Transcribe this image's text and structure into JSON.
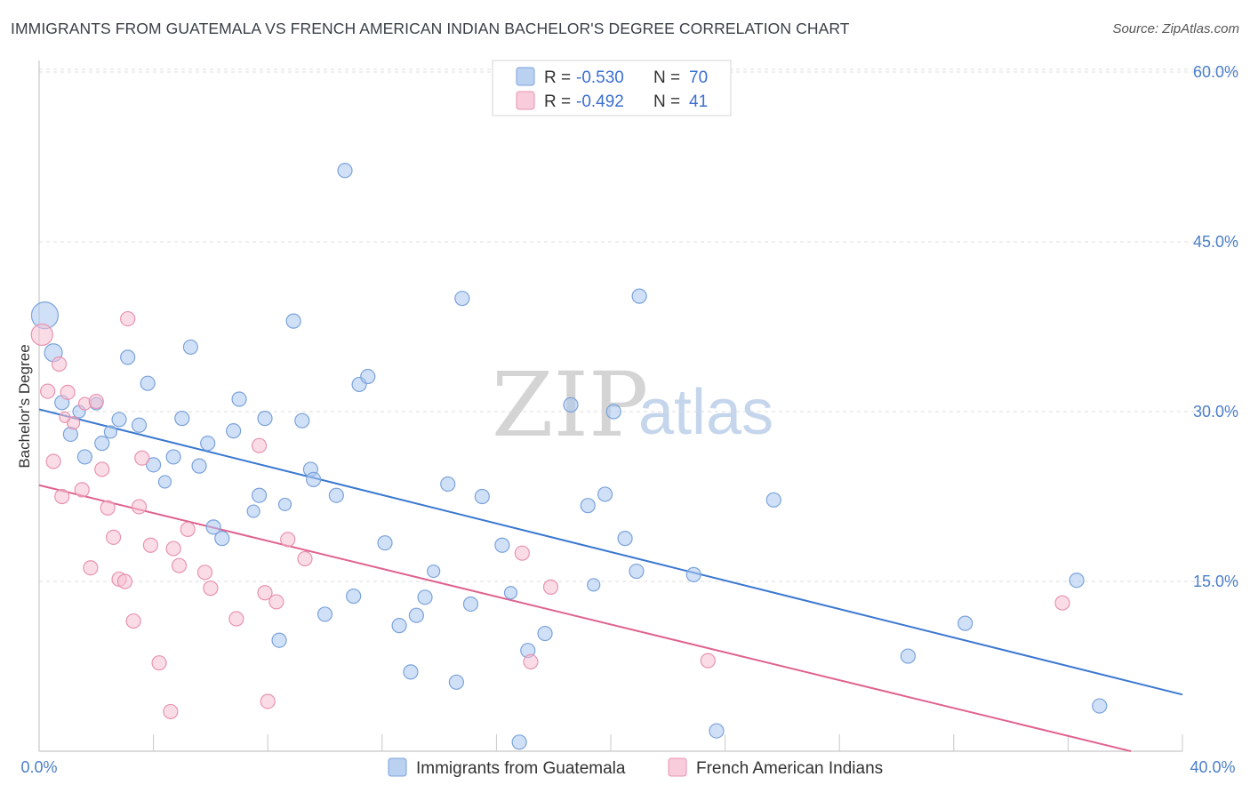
{
  "header": {
    "title": "IMMIGRANTS FROM GUATEMALA VS FRENCH AMERICAN INDIAN BACHELOR'S DEGREE CORRELATION CHART",
    "source": "Source: ZipAtlas.com"
  },
  "watermark": {
    "zip": "ZIP",
    "atlas": "atlas"
  },
  "chart_data": {
    "type": "scatter",
    "title": "IMMIGRANTS FROM GUATEMALA VS FRENCH AMERICAN INDIAN BACHELOR'S DEGREE CORRELATION CHART",
    "xlabel": "",
    "ylabel": "Bachelor's Degree",
    "xlim": [
      0,
      40
    ],
    "ylim": [
      0,
      63
    ],
    "x_tick_labels": [
      "0.0%",
      "40.0%"
    ],
    "y_ticks": [
      15,
      30,
      45,
      60
    ],
    "y_tick_labels": [
      "15.0%",
      "30.0%",
      "45.0%",
      "60.0%"
    ],
    "grid": true,
    "legend": {
      "position": "top-center",
      "rows": [
        {
          "r_label": "R =",
          "r_value": "-0.530",
          "n_label": "N =",
          "n_value": "70"
        },
        {
          "r_label": "R =",
          "r_value": "-0.492",
          "n_label": "N =",
          "n_value": "41"
        }
      ]
    },
    "series": [
      {
        "name": "Immigrants from Guatemala",
        "color": "#a9c6ee",
        "stroke": "#7ba3dc",
        "trend_color": "#3a78d0",
        "trend": {
          "x": [
            0,
            40
          ],
          "y": [
            30.2,
            5.0
          ]
        },
        "points": [
          [
            0.2,
            38.5,
            30
          ],
          [
            0.5,
            35.2,
            20
          ],
          [
            0.8,
            30.8,
            16
          ],
          [
            1.1,
            28.0,
            16
          ],
          [
            1.4,
            30.0,
            14
          ],
          [
            1.6,
            26.0,
            16
          ],
          [
            2.0,
            30.7,
            14
          ],
          [
            2.2,
            27.2,
            16
          ],
          [
            2.5,
            28.2,
            14
          ],
          [
            2.8,
            29.3,
            16
          ],
          [
            3.1,
            34.8,
            16
          ],
          [
            3.5,
            28.8,
            16
          ],
          [
            3.8,
            32.5,
            16
          ],
          [
            4.0,
            25.3,
            16
          ],
          [
            4.4,
            23.8,
            14
          ],
          [
            4.7,
            26.0,
            16
          ],
          [
            5.0,
            29.4,
            16
          ],
          [
            5.3,
            35.7,
            16
          ],
          [
            5.6,
            25.2,
            16
          ],
          [
            5.9,
            27.2,
            16
          ],
          [
            6.1,
            19.8,
            16
          ],
          [
            6.4,
            18.8,
            16
          ],
          [
            6.8,
            28.3,
            16
          ],
          [
            7.0,
            31.1,
            16
          ],
          [
            7.5,
            21.2,
            14
          ],
          [
            7.7,
            22.6,
            16
          ],
          [
            7.9,
            29.4,
            16
          ],
          [
            8.4,
            9.8,
            16
          ],
          [
            8.6,
            21.8,
            14
          ],
          [
            8.9,
            38.0,
            16
          ],
          [
            9.2,
            29.2,
            16
          ],
          [
            9.5,
            24.9,
            16
          ],
          [
            9.6,
            24.0,
            16
          ],
          [
            10.0,
            12.1,
            16
          ],
          [
            10.4,
            22.6,
            16
          ],
          [
            10.7,
            51.3,
            16
          ],
          [
            11.0,
            13.7,
            16
          ],
          [
            11.2,
            32.4,
            16
          ],
          [
            11.5,
            33.1,
            16
          ],
          [
            12.1,
            18.4,
            16
          ],
          [
            12.6,
            11.1,
            16
          ],
          [
            13.0,
            7.0,
            16
          ],
          [
            13.2,
            12.0,
            16
          ],
          [
            13.5,
            13.6,
            16
          ],
          [
            13.8,
            15.9,
            14
          ],
          [
            14.3,
            23.6,
            16
          ],
          [
            14.6,
            6.1,
            16
          ],
          [
            14.8,
            40.0,
            16
          ],
          [
            15.1,
            13.0,
            16
          ],
          [
            15.5,
            22.5,
            16
          ],
          [
            16.2,
            18.2,
            16
          ],
          [
            16.5,
            14.0,
            14
          ],
          [
            16.8,
            0.8,
            16
          ],
          [
            17.1,
            8.9,
            16
          ],
          [
            17.7,
            10.4,
            16
          ],
          [
            18.6,
            30.6,
            16
          ],
          [
            19.2,
            21.7,
            16
          ],
          [
            19.4,
            14.7,
            14
          ],
          [
            19.8,
            22.7,
            16
          ],
          [
            20.1,
            30.0,
            16
          ],
          [
            20.5,
            18.8,
            16
          ],
          [
            20.9,
            15.9,
            16
          ],
          [
            21.0,
            40.2,
            16
          ],
          [
            22.9,
            15.6,
            16
          ],
          [
            23.7,
            1.8,
            16
          ],
          [
            25.7,
            22.2,
            16
          ],
          [
            30.4,
            8.4,
            16
          ],
          [
            32.4,
            11.3,
            16
          ],
          [
            36.3,
            15.1,
            16
          ],
          [
            37.1,
            4.0,
            16
          ]
        ]
      },
      {
        "name": "French American Indians",
        "color": "#f6bfd1",
        "stroke": "#e893b0",
        "trend_color": "#e0628f",
        "trend": {
          "x": [
            0,
            38.2
          ],
          "y": [
            23.5,
            0.0
          ]
        },
        "points": [
          [
            0.1,
            36.8,
            24
          ],
          [
            0.3,
            31.8,
            16
          ],
          [
            0.5,
            25.6,
            16
          ],
          [
            0.7,
            34.2,
            16
          ],
          [
            0.8,
            22.5,
            16
          ],
          [
            1.0,
            31.7,
            16
          ],
          [
            1.2,
            29.0,
            14
          ],
          [
            1.5,
            23.1,
            16
          ],
          [
            1.6,
            30.7,
            14
          ],
          [
            1.8,
            16.2,
            16
          ],
          [
            2.0,
            30.9,
            16
          ],
          [
            2.2,
            24.9,
            16
          ],
          [
            2.4,
            21.5,
            16
          ],
          [
            2.6,
            18.9,
            16
          ],
          [
            2.8,
            15.2,
            16
          ],
          [
            3.0,
            15.0,
            16
          ],
          [
            3.1,
            38.2,
            16
          ],
          [
            3.3,
            11.5,
            16
          ],
          [
            3.5,
            21.6,
            16
          ],
          [
            3.6,
            25.9,
            16
          ],
          [
            3.9,
            18.2,
            16
          ],
          [
            4.2,
            7.8,
            16
          ],
          [
            4.6,
            3.5,
            16
          ],
          [
            4.7,
            17.9,
            16
          ],
          [
            4.9,
            16.4,
            16
          ],
          [
            5.2,
            19.6,
            16
          ],
          [
            5.8,
            15.8,
            16
          ],
          [
            6.0,
            14.4,
            16
          ],
          [
            6.9,
            11.7,
            16
          ],
          [
            7.7,
            27.0,
            16
          ],
          [
            7.9,
            14.0,
            16
          ],
          [
            8.0,
            4.4,
            16
          ],
          [
            8.3,
            13.2,
            16
          ],
          [
            8.7,
            18.7,
            16
          ],
          [
            9.3,
            17.0,
            16
          ],
          [
            16.9,
            17.5,
            16
          ],
          [
            17.2,
            7.9,
            16
          ],
          [
            17.9,
            14.5,
            16
          ],
          [
            23.4,
            8.0,
            16
          ],
          [
            35.8,
            13.1,
            16
          ],
          [
            0.9,
            29.5,
            12
          ]
        ]
      }
    ]
  },
  "bottom_legend": {
    "items": [
      {
        "label": "Immigrants from Guatemala"
      },
      {
        "label": "French American Indians"
      }
    ]
  }
}
